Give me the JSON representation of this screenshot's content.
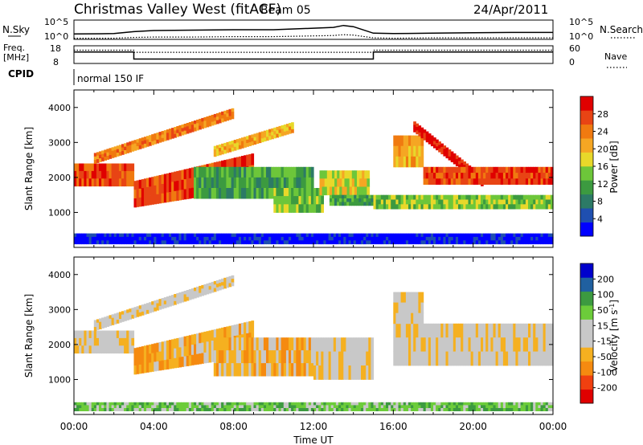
{
  "header": {
    "title": "Christmas Valley West (fitACF)",
    "beam": "Beam 05",
    "date": "24/Apr/2011"
  },
  "chart_data": [
    {
      "type": "line",
      "panel": "noise",
      "left_label": "N.Sky",
      "right_label": "N.Search",
      "left_ticks": [
        "10^5",
        "10^0"
      ],
      "right_ticks": [
        "10^5",
        "10^0"
      ],
      "x": [
        "00:00",
        "02:00",
        "03:00",
        "04:00",
        "06:00",
        "08:00",
        "10:00",
        "12:00",
        "13:00",
        "13:30",
        "14:00",
        "15:00",
        "16:00",
        "18:00",
        "20:00",
        "22:00",
        "24:00"
      ],
      "series": [
        {
          "name": "N.Sky",
          "style": "solid",
          "values": [
            1.4,
            1.5,
            2.0,
            2.3,
            2.4,
            2.5,
            2.5,
            2.9,
            3.1,
            3.6,
            3.3,
            1.6,
            1.5,
            1.6,
            1.7,
            1.8,
            1.8
          ]
        },
        {
          "name": "N.Search",
          "style": "dotted",
          "values": [
            0.3,
            0.3,
            0.5,
            0.6,
            0.6,
            0.7,
            0.7,
            0.9,
            1.0,
            1.2,
            1.1,
            0.4,
            0.3,
            0.4,
            0.4,
            0.4,
            0.4
          ]
        }
      ],
      "ylim": [
        0,
        5
      ]
    },
    {
      "type": "line",
      "panel": "frequency",
      "left_label_lines": [
        "Freq.",
        "[MHz]"
      ],
      "right_label": "Nave",
      "left_ticks": [
        "18",
        "8"
      ],
      "right_ticks": [
        "60",
        "0"
      ],
      "segments": [
        {
          "start": "00:00",
          "end": "03:00",
          "freq": 14.5,
          "nave": 45
        },
        {
          "start": "03:00",
          "end": "15:00",
          "freq": 10.5,
          "nave": 38
        },
        {
          "start": "15:00",
          "end": "24:00",
          "freq": 14.5,
          "nave": 45
        }
      ],
      "ylim": [
        8,
        18
      ]
    },
    {
      "type": "table",
      "panel": "cpid",
      "label": "CPID",
      "mode_label": "normal 150 IF"
    },
    {
      "type": "heatmap",
      "panel": "power",
      "ylabel": "Slant Range [km]",
      "yticks": [
        "1000",
        "2000",
        "3000",
        "4000"
      ],
      "ylim": [
        0,
        4500
      ],
      "xlim": [
        0,
        24
      ],
      "colorbar": {
        "label": "Power [dB]",
        "ticks": [
          "4",
          "8",
          "12",
          "16",
          "20",
          "24",
          "28"
        ],
        "colors": [
          "#0000ff",
          "#1f4fb0",
          "#2c7a66",
          "#3c9a40",
          "#6dc63a",
          "#e8d82a",
          "#f5a623",
          "#f07a10",
          "#e84414",
          "#e00000"
        ]
      },
      "bands": [
        {
          "x0": 0.0,
          "x1": 3.0,
          "r0": 1750,
          "r1": 2400,
          "level": 8
        },
        {
          "x0": 3.0,
          "x1": 9.0,
          "r0": 1150,
          "r1": 1900,
          "r0_end": 1700,
          "r1_end": 2700,
          "level": 8
        },
        {
          "x0": 1.0,
          "x1": 8.0,
          "r0": 2400,
          "r1": 2700,
          "r0_end": 3700,
          "r1_end": 4000,
          "level": 7
        },
        {
          "x0": 7.0,
          "x1": 11.0,
          "r0": 2600,
          "r1": 2900,
          "r0_end": 3300,
          "r1_end": 3600,
          "level": 6
        },
        {
          "x0": 6.0,
          "x1": 12.0,
          "r0": 1400,
          "r1": 2300,
          "level": 3
        },
        {
          "x0": 10.0,
          "x1": 12.5,
          "r0": 1000,
          "r1": 1700,
          "level": 4
        },
        {
          "x0": 12.3,
          "x1": 14.8,
          "r0": 1500,
          "r1": 2200,
          "level": 5
        },
        {
          "x0": 12.8,
          "x1": 15.0,
          "r0": 1200,
          "r1": 1500,
          "level": 3
        },
        {
          "x0": 16.0,
          "x1": 17.5,
          "r0": 2300,
          "r1": 3200,
          "level": 6
        },
        {
          "x0": 17.0,
          "x1": 20.5,
          "r0": 3300,
          "r1": 3600,
          "r0_end": 1700,
          "r1_end": 2000,
          "level": 9
        },
        {
          "x0": 17.5,
          "x1": 24.0,
          "r0": 1800,
          "r1": 2300,
          "level": 8
        },
        {
          "x0": 15.0,
          "x1": 24.0,
          "r0": 1100,
          "r1": 1500,
          "level": 4
        },
        {
          "x0": 0.0,
          "x1": 24.0,
          "r0": 100,
          "r1": 400,
          "level": 0
        }
      ]
    },
    {
      "type": "heatmap",
      "panel": "velocity",
      "ylabel": "Slant Range [km]",
      "xlabel": "Time UT",
      "xticks": [
        "00:00",
        "04:00",
        "08:00",
        "12:00",
        "16:00",
        "20:00",
        "00:00"
      ],
      "yticks": [
        "1000",
        "2000",
        "3000",
        "4000"
      ],
      "ylim": [
        0,
        4500
      ],
      "xlim": [
        0,
        24
      ],
      "colorbar": {
        "label": "Velocity [m s^-1]",
        "ticks": [
          "-200",
          "-100",
          "-50",
          "-15",
          "15",
          "50",
          "100",
          "200"
        ],
        "colors": [
          "#e00000",
          "#f04010",
          "#f58a10",
          "#f5b020",
          "#c8c8c8",
          "#c8c8c8",
          "#6ccc3a",
          "#3c9a40",
          "#2060a0",
          "#0000cc"
        ]
      },
      "bands": [
        {
          "x0": 0.0,
          "x1": 3.0,
          "r0": 1750,
          "r1": 2400,
          "level": 4
        },
        {
          "x0": 3.0,
          "x1": 9.0,
          "r0": 1150,
          "r1": 1900,
          "r0_end": 1700,
          "r1_end": 2700,
          "level": 3
        },
        {
          "x0": 1.0,
          "x1": 8.0,
          "r0": 2400,
          "r1": 2700,
          "r0_end": 3700,
          "r1_end": 4000,
          "level": 4
        },
        {
          "x0": 7.0,
          "x1": 12.0,
          "r0": 1100,
          "r1": 2200,
          "level": 3
        },
        {
          "x0": 12.0,
          "x1": 15.0,
          "r0": 1000,
          "r1": 2200,
          "level": 4
        },
        {
          "x0": 16.0,
          "x1": 24.0,
          "r0": 1400,
          "r1": 2600,
          "level": 4
        },
        {
          "x0": 16.0,
          "x1": 17.5,
          "r0": 2600,
          "r1": 3500,
          "level": 4
        },
        {
          "x0": 0.0,
          "x1": 24.0,
          "r0": 100,
          "r1": 350,
          "level": 6
        }
      ]
    }
  ]
}
